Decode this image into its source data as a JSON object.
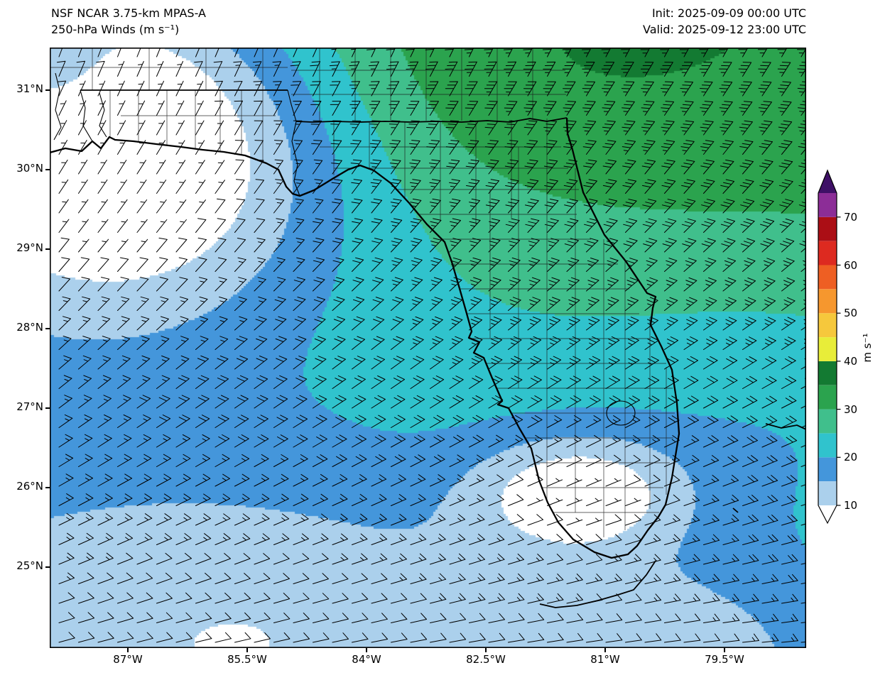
{
  "header": {
    "model_title": "NSF NCAR 3.75-km MPAS-A",
    "field_title": "250-hPa Winds (m s⁻¹)",
    "init": "Init: 2025-09-09 00:00 UTC",
    "valid": "Valid: 2025-09-12 23:00 UTC"
  },
  "axes": {
    "y_tick_labels": [
      "31°N",
      "30°N",
      "29°N",
      "28°N",
      "27°N",
      "26°N",
      "25°N"
    ],
    "x_tick_labels": [
      "87°W",
      "85.5°W",
      "84°W",
      "82.5°W",
      "81°W",
      "79.5°W"
    ]
  },
  "colorbar": {
    "unit_label": "m s⁻¹",
    "tick_labels": [
      "10",
      "20",
      "30",
      "40",
      "50",
      "60",
      "70"
    ],
    "band_edges": [
      10,
      15,
      20,
      25,
      30,
      35,
      40,
      45,
      50,
      55,
      60,
      65,
      70,
      75
    ],
    "band_colors": [
      "#abd0ec",
      "#4496db",
      "#30c3cd",
      "#40bf8c",
      "#2ba34e",
      "#137a32",
      "#e8ed39",
      "#f6c83c",
      "#f6972e",
      "#ee5f23",
      "#dd2a20",
      "#ab0e15",
      "#8c2d97"
    ],
    "under_color": "#ffffff",
    "over_color": "#3e1066",
    "extend": "both"
  },
  "chart_data": {
    "type": "heatmap",
    "title": "NSF NCAR 3.75-km MPAS-A 250-hPa Winds (m s⁻¹)",
    "model": "NSF NCAR 3.75-km MPAS-A",
    "variable": "250-hPa wind speed (shaded) with wind barbs",
    "units": "m s⁻¹",
    "init_time": "2025-09-09 00:00 UTC",
    "valid_time": "2025-09-12 23:00 UTC",
    "region": "Florida, southeastern United States, eastern Gulf of Mexico, western Atlantic",
    "map_overlays": [
      "Florida coastline",
      "state borders (AL/FL, GA/FL)",
      "county boundaries",
      "Apalachicola river",
      "Lake Okeechobee",
      "Florida Keys",
      "Grand Bahama"
    ],
    "lon_ticks_deg_w": [
      87,
      85.5,
      84,
      82.5,
      81,
      79.5
    ],
    "lat_ticks_deg_n": [
      31,
      30,
      29,
      28,
      27,
      26,
      25
    ],
    "lon_range_deg_w": [
      88.0,
      78.5
    ],
    "lat_range_deg_n": [
      24.0,
      31.5
    ],
    "colorbar_ticks": [
      10,
      20,
      30,
      40,
      50,
      60,
      70
    ],
    "colorbar_range": [
      10,
      75
    ],
    "colorbar_band_interval": 5,
    "barb_convention": "full barb = 10 m s⁻¹, half barb = 5 m s⁻¹",
    "wind_direction": "from north-northeast over north Florida/Georgia, veering to east over the southern Gulf and Florida Straits",
    "field_summary": [
      {
        "region": "southwest Alabama / far northern Gulf coast (upper left)",
        "wind_speed_ms": "<10 (local minimum, white)"
      },
      {
        "region": "Georgia and northeast Florida into Atlantic (upper right)",
        "wind_speed_ms": "30-38 (broad maximum, green/dark green)"
      },
      {
        "region": "central Florida peninsula",
        "wind_speed_ms": "22-30"
      },
      {
        "region": "eastern Gulf of Mexico (lower left)",
        "wind_speed_ms": "12-20 with 10-15 patches"
      },
      {
        "region": "southeast Florida near Miami",
        "wind_speed_ms": "<12 (local minimum, white patches)"
      },
      {
        "region": "western Atlantic / Bahamas (lower right)",
        "wind_speed_ms": "12-20"
      }
    ],
    "field_model": {
      "note": "gaussian-bump approximation of the shaded wind-speed field, u,v normalized plot coords",
      "base": {
        "c0": 22,
        "amp": 12,
        "wv": 0.8,
        "wu": 0.5,
        "off": 0.5
      },
      "bumps": [
        {
          "a": -26,
          "cu": 0.1,
          "cv": 0.15,
          "su": 0.2,
          "sv": 0.2
        },
        {
          "a": 6,
          "cu": 0.6,
          "cv": 0.05,
          "su": 0.35,
          "sv": 0.18
        },
        {
          "a": -8,
          "cu": 0.3,
          "cv": 0.95,
          "su": 0.28,
          "sv": 0.18
        },
        {
          "a": -15,
          "cu": 0.7,
          "cv": 0.74,
          "su": 0.1,
          "sv": 0.07
        },
        {
          "a": -9,
          "cu": 0.82,
          "cv": 1.02,
          "su": 0.16,
          "sv": 0.12
        },
        {
          "a": -5,
          "cu": 1.0,
          "cv": 0.62,
          "su": 0.2,
          "sv": 0.15
        },
        {
          "a": 6,
          "cu": 0.01,
          "cv": 0.03,
          "su": 0.05,
          "sv": 0.06
        }
      ]
    },
    "wind_direction_model": {
      "base": 20,
      "dv": 55,
      "du": 10,
      "note": "met from-direction deg = base + dv*v + du*u"
    }
  }
}
